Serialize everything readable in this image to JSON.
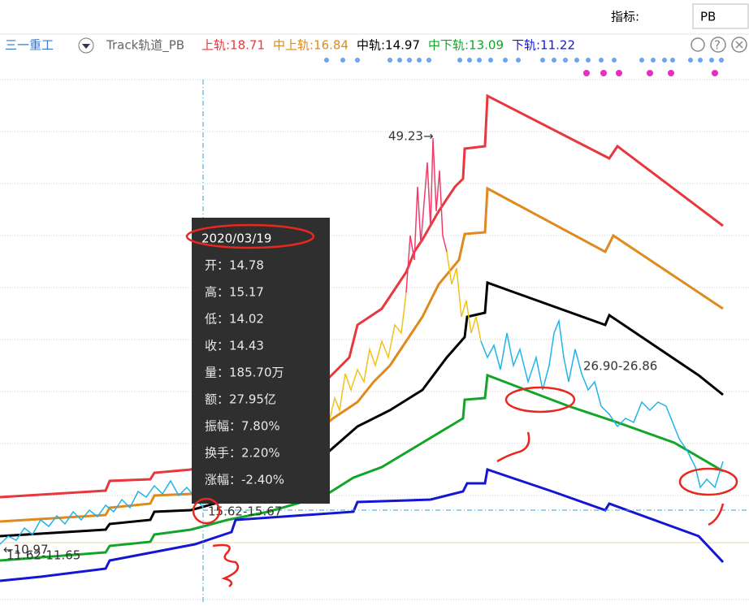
{
  "header": {
    "indicator_label": "指标:",
    "indicator_value": "PB"
  },
  "toolbar": {
    "stock": "三一重工",
    "indicator": "Track轨道_PB",
    "legend": [
      {
        "label": "上轨:18.71",
        "color": "#e8383d"
      },
      {
        "label": "中上轨:16.84",
        "color": "#e0891c"
      },
      {
        "label": "中轨:14.97",
        "color": "#000000"
      },
      {
        "label": "中下轨:13.09",
        "color": "#12a52a"
      },
      {
        "label": "下轨:11.22",
        "color": "#1515d6"
      }
    ]
  },
  "annotations": {
    "peak": "49.23→",
    "range_mid": "26.90-26.86",
    "range_low": "15.62-15.67",
    "left_low": "←10.97",
    "left_range": "11.62-11.65"
  },
  "tooltip": {
    "date": "2020/03/19",
    "rows": [
      "开：14.78",
      "高：15.17",
      "低：14.02",
      "收：14.43",
      "量：185.70万",
      "额：27.95亿",
      "振幅：7.80%",
      "换手：2.20%",
      "涨幅：-2.40%"
    ]
  }
}
